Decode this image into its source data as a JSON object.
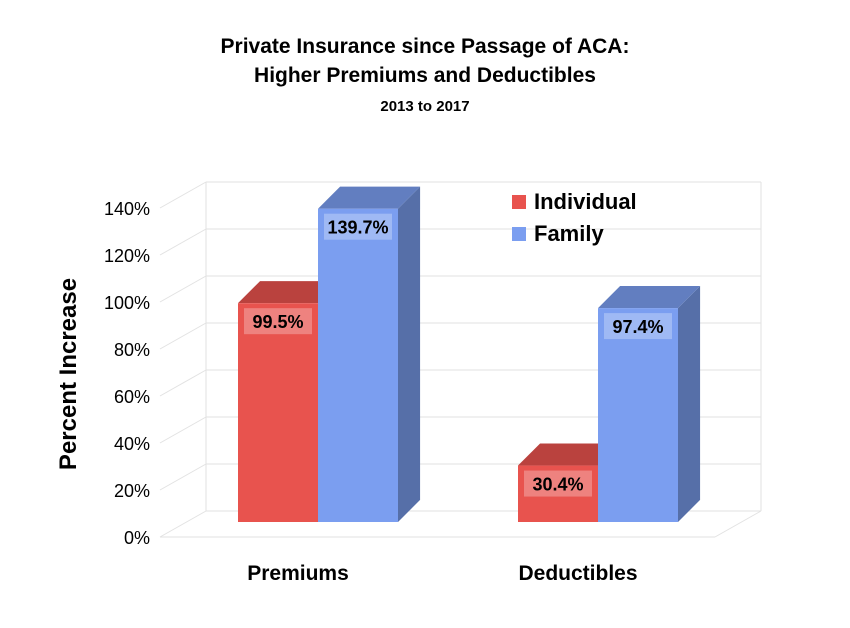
{
  "title_line1": "Private Insurance since Passage of ACA:",
  "title_line2": "Higher Premiums and Deductibles",
  "subtitle": "2013 to 2017",
  "chart_data": {
    "type": "bar",
    "title": "Private Insurance since Passage of ACA: Higher Premiums and Deductibles",
    "subtitle": "2013 to 2017",
    "categories": [
      "Premiums",
      "Deductibles"
    ],
    "series": [
      {
        "name": "Individual",
        "values": [
          99.5,
          30.4
        ],
        "labels": [
          "99.5%",
          "30.4%"
        ],
        "color": "#e8534e"
      },
      {
        "name": "Family",
        "values": [
          139.7,
          97.4
        ],
        "labels": [
          "139.7%",
          "97.4%"
        ],
        "color": "#7b9ef0"
      }
    ],
    "ylabel": "Percent Increase",
    "xlabel": "",
    "ylim": [
      0,
      140
    ],
    "yticks": [
      "0%",
      "20%",
      "40%",
      "60%",
      "80%",
      "100%",
      "120%",
      "140%"
    ],
    "grid": true,
    "legend": "top-right",
    "style": "3d-columns"
  }
}
